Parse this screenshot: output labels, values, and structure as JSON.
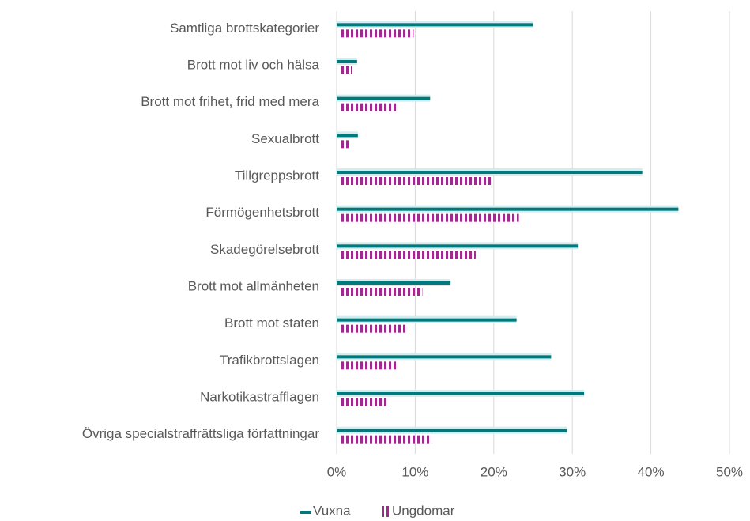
{
  "chart_data": {
    "type": "bar",
    "orientation": "horizontal",
    "categories": [
      "Samtliga brottskategorier",
      "Brott mot liv och hälsa",
      "Brott mot frihet, frid med mera",
      "Sexualbrott",
      "Tillgreppsbrott",
      "Förmögenhetsbrott",
      "Skadegörelsebrott",
      "Brott mot allmänheten",
      "Brott mot staten",
      "Trafikbrottslagen",
      "Narkotikastrafflagen",
      "Övriga specialstraffrättsliga författningar"
    ],
    "series": [
      {
        "name": "Vuxna",
        "color": "#00797d",
        "values": [
          25.0,
          2.6,
          11.9,
          2.7,
          38.9,
          43.5,
          30.7,
          14.5,
          22.9,
          27.3,
          31.5,
          29.3
        ]
      },
      {
        "name": "Ungdomar",
        "color": "#9e2a8e",
        "values": [
          9.8,
          2.0,
          7.6,
          1.8,
          19.8,
          23.2,
          17.7,
          10.9,
          8.9,
          7.6,
          6.5,
          12.1
        ]
      }
    ],
    "xlim": [
      0,
      50
    ],
    "xticks": [
      {
        "value": 0,
        "label": "0%"
      },
      {
        "value": 10,
        "label": "10%"
      },
      {
        "value": 20,
        "label": "20%"
      },
      {
        "value": 30,
        "label": "30%"
      },
      {
        "value": 40,
        "label": "40%"
      },
      {
        "value": 50,
        "label": "50%"
      }
    ],
    "grid": true,
    "legend": "bottom"
  }
}
